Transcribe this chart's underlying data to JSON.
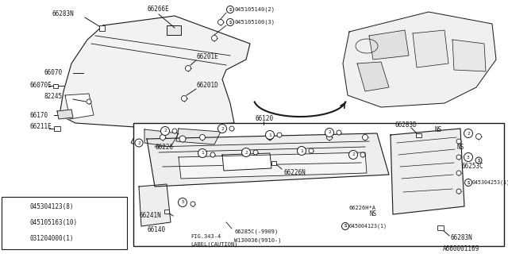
{
  "bg_color": "#ffffff",
  "line_color": "#1a1a1a",
  "legend_items": [
    {
      "num": "1",
      "symbol": "S",
      "code": "045304123(8)"
    },
    {
      "num": "2",
      "symbol": "S",
      "code": "045105163(10)"
    },
    {
      "num": "3",
      "symbol": "W",
      "code": "031204000(1)"
    }
  ],
  "diagram_id": "A660001169",
  "fig_label": "FIG.343-4",
  "label_caution": "LABEL(CAUTION)"
}
